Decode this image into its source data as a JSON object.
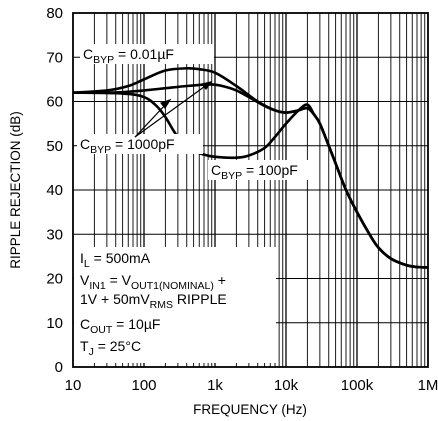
{
  "chart_data": {
    "type": "line",
    "xlabel": "FREQUENCY (Hz)",
    "ylabel": "RIPPLE REJECTION (dB)",
    "x_scale": "log",
    "xlim": [
      10,
      1000000
    ],
    "ylim": [
      0,
      80
    ],
    "grid": true,
    "x_ticks": [
      {
        "value": 10,
        "label": "10"
      },
      {
        "value": 100,
        "label": "100"
      },
      {
        "value": 1000,
        "label": "1k"
      },
      {
        "value": 10000,
        "label": "10k"
      },
      {
        "value": 100000,
        "label": "100k"
      },
      {
        "value": 1000000,
        "label": "1M"
      }
    ],
    "y_ticks": [
      0,
      10,
      20,
      30,
      40,
      50,
      60,
      70,
      80
    ],
    "series": [
      {
        "name": "C_BYP = 0.01µF",
        "color": "#000000",
        "x": [
          10,
          30,
          60,
          100,
          200,
          400,
          600,
          1000,
          2000,
          4000,
          7000,
          10000,
          15000,
          20000,
          25000,
          30000,
          40000,
          50000,
          70000,
          100000,
          150000,
          200000,
          300000,
          500000,
          700000,
          1000000
        ],
        "y": [
          62,
          62.5,
          63.5,
          65,
          67,
          67.5,
          67.3,
          66.5,
          63.5,
          60,
          58,
          57.5,
          58,
          58.5,
          57,
          55,
          50,
          46,
          40,
          35,
          30,
          27,
          24.5,
          23,
          22.6,
          22.5
        ]
      },
      {
        "name": "C_BYP = 1000pF",
        "color": "#000000",
        "x": [
          10,
          30,
          60,
          100,
          200,
          400,
          700,
          1000,
          1500,
          2000,
          3000,
          5000,
          7000,
          10000,
          15000,
          20000,
          25000,
          30000,
          40000,
          50000,
          70000,
          100000,
          150000,
          200000,
          300000,
          500000,
          700000,
          1000000
        ],
        "y": [
          62,
          62,
          62.2,
          62.5,
          63,
          63.5,
          63.8,
          63.8,
          63.2,
          62.5,
          61,
          59,
          58,
          57.5,
          58,
          58.5,
          57,
          55,
          50,
          46,
          40,
          35,
          30,
          27,
          24.5,
          23,
          22.6,
          22.5
        ]
      },
      {
        "name": "C_BYP = 100pF",
        "color": "#000000",
        "x": [
          10,
          50,
          100,
          150,
          200,
          300,
          500,
          700,
          1000,
          2000,
          3000,
          5000,
          7000,
          10000,
          15000,
          20000,
          25000,
          30000,
          40000,
          50000,
          70000,
          100000,
          150000,
          200000,
          300000,
          500000,
          700000,
          1000000
        ],
        "y": [
          62,
          61.8,
          61,
          59,
          56.5,
          52,
          49,
          48,
          47.5,
          47.3,
          47.8,
          49.5,
          52,
          55,
          58,
          59.3,
          57,
          55,
          50,
          46,
          40,
          35,
          30,
          27,
          24.5,
          23,
          22.6,
          22.5
        ]
      }
    ]
  },
  "annotations": {
    "cbyp_001": {
      "main": "C",
      "sub": "BYP",
      "rest": " = 0.01µF"
    },
    "cbyp_1000": {
      "main": "C",
      "sub": "BYP",
      "rest": " = 1000pF"
    },
    "cbyp_100": {
      "main": "C",
      "sub": "BYP",
      "rest": " = 100pF"
    },
    "conditions": {
      "il": {
        "main": "I",
        "sub": "L",
        "rest": " = 500mA"
      },
      "vin1": {
        "p1": "V",
        "s1": "IN1",
        "p2": " = V",
        "s2": "OUT1(NOMINAL)",
        "p3": " +"
      },
      "ripple": {
        "p1": "1V + 50mV",
        "s1": "RMS",
        "p2": " RIPPLE"
      },
      "cout": {
        "main": "C",
        "sub": "OUT",
        "rest": " = 10µF"
      },
      "tj": {
        "main": "T",
        "sub": "J",
        "rest": " = 25°C"
      }
    }
  }
}
